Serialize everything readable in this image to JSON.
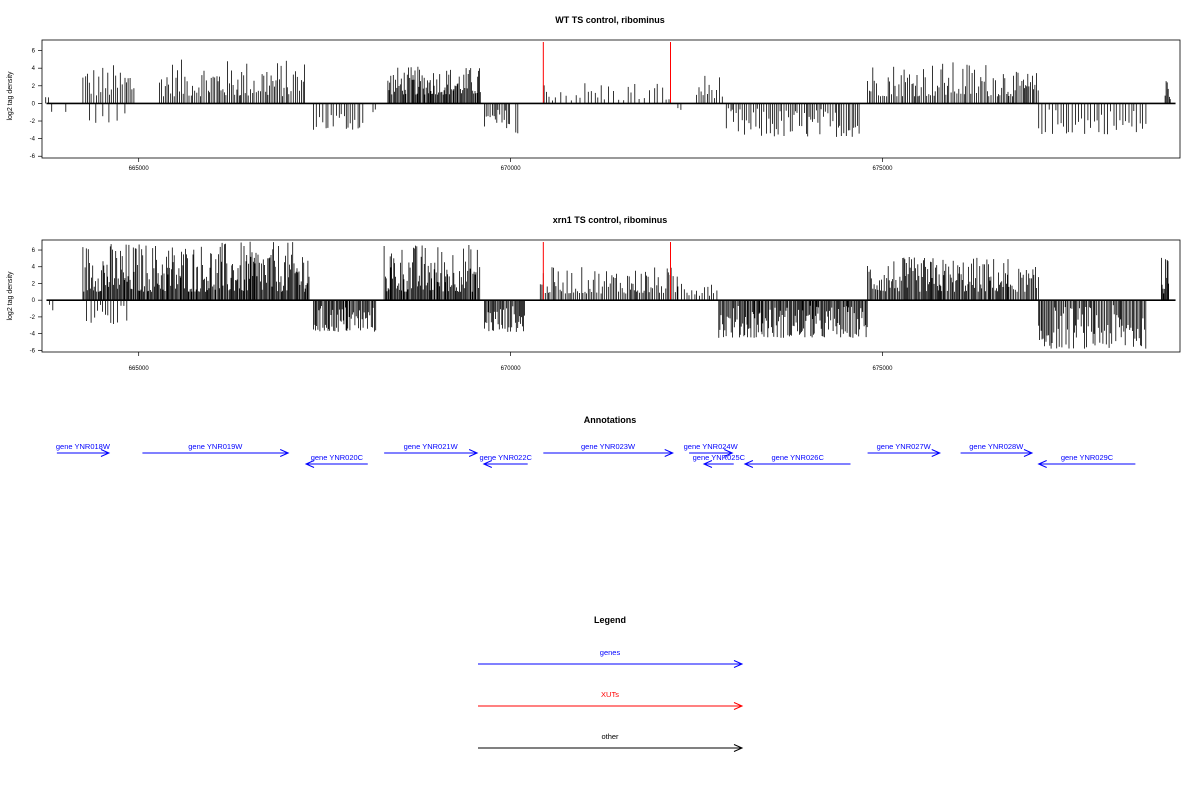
{
  "x_range": [
    663700,
    679000
  ],
  "plots": [
    {
      "id": "wt",
      "title": "WT TS control, ribominus",
      "ylabel": "log2 tag density",
      "yticks": [
        -6,
        -4,
        -2,
        0,
        2,
        4,
        6
      ],
      "xticks": [
        665000,
        670000,
        675000
      ],
      "ylim": [
        -6.2,
        7.2
      ],
      "xut_markers": [
        670440,
        672150
      ],
      "segments": [
        {
          "start": 663750,
          "end": 663800,
          "min": 0.2,
          "max": 1.2,
          "strand": "+",
          "density": 0.3
        },
        {
          "start": 663830,
          "end": 663880,
          "min": -1.6,
          "max": -0.4,
          "strand": "-",
          "density": 0.3
        },
        {
          "start": 664020,
          "end": 664060,
          "min": -1.0,
          "max": -0.4,
          "strand": "-",
          "density": 0.3
        },
        {
          "start": 664250,
          "end": 664950,
          "min": 0.8,
          "max": 4.5,
          "strand": "+",
          "density": 0.45
        },
        {
          "start": 664340,
          "end": 664900,
          "min": -2.4,
          "max": -0.6,
          "strand": "-",
          "density": 0.1
        },
        {
          "start": 665280,
          "end": 667250,
          "min": 0.8,
          "max": 5.0,
          "strand": "+",
          "density": 0.6
        },
        {
          "start": 667350,
          "end": 668050,
          "min": -3.0,
          "max": -0.6,
          "strand": "-",
          "density": 0.4
        },
        {
          "start": 668150,
          "end": 668200,
          "min": -1.4,
          "max": -0.4,
          "strand": "-",
          "density": 0.3
        },
        {
          "start": 668350,
          "end": 669600,
          "min": 1.0,
          "max": 4.2,
          "strand": "+",
          "density": 0.95
        },
        {
          "start": 669650,
          "end": 670000,
          "min": -2.8,
          "max": -0.6,
          "strand": "-",
          "density": 0.55
        },
        {
          "start": 670070,
          "end": 670100,
          "min": -4.2,
          "max": -2.0,
          "strand": "-",
          "density": 0.6
        },
        {
          "start": 670450,
          "end": 672150,
          "min": 0.3,
          "max": 2.6,
          "strand": "+",
          "density": 0.25
        },
        {
          "start": 672250,
          "end": 672300,
          "min": -1.2,
          "max": -0.4,
          "strand": "-",
          "density": 0.3
        },
        {
          "start": 672500,
          "end": 672850,
          "min": 0.6,
          "max": 3.4,
          "strand": "+",
          "density": 0.45
        },
        {
          "start": 672900,
          "end": 674700,
          "min": -3.8,
          "max": -0.5,
          "strand": "-",
          "density": 0.5
        },
        {
          "start": 674800,
          "end": 676700,
          "min": 0.8,
          "max": 4.8,
          "strand": "+",
          "density": 0.55
        },
        {
          "start": 676700,
          "end": 677100,
          "min": 0.8,
          "max": 3.6,
          "strand": "+",
          "density": 0.7
        },
        {
          "start": 677100,
          "end": 678550,
          "min": -3.5,
          "max": -0.5,
          "strand": "-",
          "density": 0.35
        },
        {
          "start": 678800,
          "end": 678870,
          "min": 0.4,
          "max": 3.3,
          "strand": "+",
          "density": 1.0
        }
      ]
    },
    {
      "id": "xrn1",
      "title": "xrn1 TS control, ribominus",
      "ylabel": "log2 tag density",
      "yticks": [
        -6,
        -4,
        -2,
        0,
        2,
        4,
        6
      ],
      "xticks": [
        665000,
        670000,
        675000
      ],
      "ylim": [
        -6.2,
        7.2
      ],
      "xut_markers": [
        670440,
        672150
      ],
      "segments": [
        {
          "start": 663800,
          "end": 663850,
          "min": -1.3,
          "max": -0.4,
          "strand": "-",
          "density": 0.3
        },
        {
          "start": 664250,
          "end": 667300,
          "min": 1.0,
          "max": 7.0,
          "strand": "+",
          "density": 1.0
        },
        {
          "start": 664300,
          "end": 664850,
          "min": -3.0,
          "max": -0.5,
          "strand": "-",
          "density": 0.3
        },
        {
          "start": 667350,
          "end": 668200,
          "min": -3.8,
          "max": -0.6,
          "strand": "-",
          "density": 0.9
        },
        {
          "start": 668300,
          "end": 669600,
          "min": 1.0,
          "max": 6.8,
          "strand": "+",
          "density": 1.0
        },
        {
          "start": 669650,
          "end": 670200,
          "min": -3.8,
          "max": -0.6,
          "strand": "-",
          "density": 0.9
        },
        {
          "start": 670400,
          "end": 672250,
          "min": 0.8,
          "max": 4.0,
          "strand": "+",
          "density": 0.6
        },
        {
          "start": 672250,
          "end": 672800,
          "min": 0.5,
          "max": 3.5,
          "strand": "+",
          "density": 0.4
        },
        {
          "start": 672800,
          "end": 674800,
          "min": -4.5,
          "max": -0.6,
          "strand": "-",
          "density": 0.95
        },
        {
          "start": 674800,
          "end": 676700,
          "min": 1.0,
          "max": 5.2,
          "strand": "+",
          "density": 0.9
        },
        {
          "start": 676700,
          "end": 677100,
          "min": 1.0,
          "max": 4.0,
          "strand": "+",
          "density": 0.7
        },
        {
          "start": 677100,
          "end": 678550,
          "min": -5.8,
          "max": -0.6,
          "strand": "-",
          "density": 0.8
        },
        {
          "start": 678750,
          "end": 678850,
          "min": 0.8,
          "max": 5.2,
          "strand": "+",
          "density": 1.0
        }
      ]
    }
  ],
  "annotations": {
    "title": "Annotations",
    "genes": [
      {
        "label": "gene YNR018W",
        "start": 663900,
        "end": 664600,
        "strand": "+",
        "row": 0
      },
      {
        "label": "gene YNR019W",
        "start": 665050,
        "end": 667010,
        "strand": "+",
        "row": 0
      },
      {
        "label": "gene YNR020C",
        "start": 667250,
        "end": 668080,
        "strand": "-",
        "row": 1
      },
      {
        "label": "gene YNR021W",
        "start": 668300,
        "end": 669550,
        "strand": "+",
        "row": 0
      },
      {
        "label": "gene YNR022C",
        "start": 669640,
        "end": 670230,
        "strand": "-",
        "row": 1
      },
      {
        "label": "gene YNR023W",
        "start": 670440,
        "end": 672180,
        "strand": "+",
        "row": 0
      },
      {
        "label": "gene YNR024W",
        "start": 672400,
        "end": 672980,
        "strand": "+",
        "row": 0
      },
      {
        "label": "gene YNR025C",
        "start": 672600,
        "end": 673000,
        "strand": "-",
        "row": 1
      },
      {
        "label": "gene YNR026C",
        "start": 673150,
        "end": 674570,
        "strand": "-",
        "row": 1
      },
      {
        "label": "gene YNR027W",
        "start": 674800,
        "end": 675770,
        "strand": "+",
        "row": 0
      },
      {
        "label": "gene YNR028W",
        "start": 676050,
        "end": 677010,
        "strand": "+",
        "row": 0
      },
      {
        "label": "gene YNR029C",
        "start": 677100,
        "end": 678400,
        "strand": "-",
        "row": 1
      }
    ]
  },
  "legend": {
    "title": "Legend",
    "items": [
      {
        "label": "genes",
        "color": "#0000ff"
      },
      {
        "label": "XUTs",
        "color": "#ff0000"
      },
      {
        "label": "other",
        "color": "#000000"
      }
    ]
  },
  "colors": {
    "gene": "#0000ff",
    "xut": "#ff0000",
    "signal": "#000000"
  }
}
